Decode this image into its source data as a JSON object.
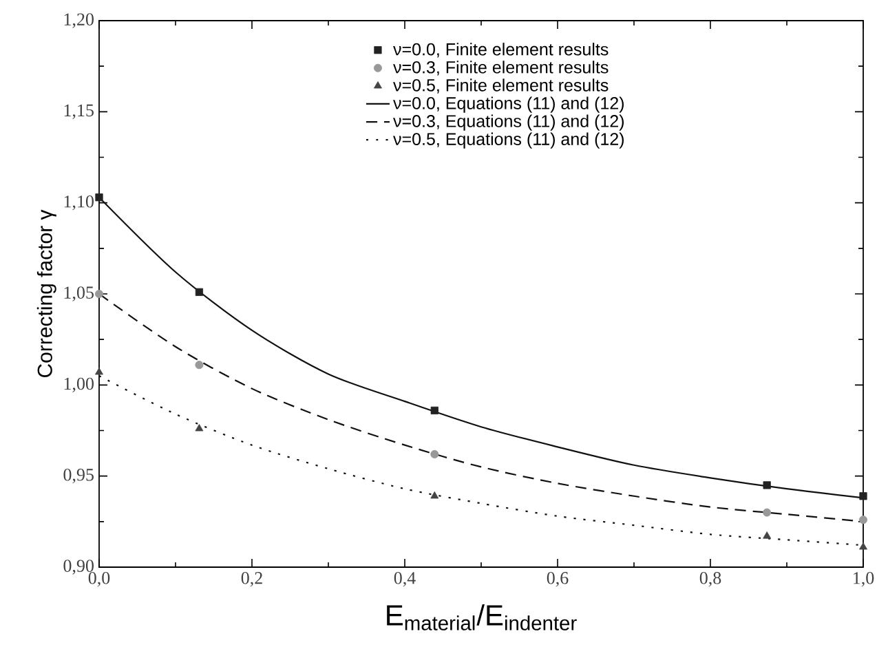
{
  "chart_data": {
    "type": "line",
    "xlabel": "E$_{material}$/E$_{indenter}$",
    "ylabel": "Correcting factor γ",
    "xlim": [
      0,
      1
    ],
    "ylim": [
      0.9,
      1.2
    ],
    "xticks": [
      {
        "value": 0,
        "label": "0,0"
      },
      {
        "value": 0.2,
        "label": "0,2"
      },
      {
        "value": 0.4,
        "label": "0,4"
      },
      {
        "value": 0.6,
        "label": "0,6"
      },
      {
        "value": 0.8,
        "label": "0,8"
      },
      {
        "value": 1.0,
        "label": "1,0"
      }
    ],
    "yticks": [
      {
        "value": 0.9,
        "label": "0,90"
      },
      {
        "value": 0.95,
        "label": "0,95"
      },
      {
        "value": 1.0,
        "label": "1,00"
      },
      {
        "value": 1.05,
        "label": "1,05"
      },
      {
        "value": 1.1,
        "label": "1,10"
      },
      {
        "value": 1.15,
        "label": "1,15"
      },
      {
        "value": 1.2,
        "label": "1,20"
      }
    ],
    "grid": false,
    "legend": "top",
    "series": [
      {
        "name": "ν=0.0, Finite element results",
        "type": "scatter",
        "marker": "square",
        "color": "#222222",
        "x": [
          0,
          0.131,
          0.439,
          0.874,
          1.0
        ],
        "values": [
          1.103,
          1.051,
          0.986,
          0.945,
          0.939
        ]
      },
      {
        "name": "ν=0.3, Finite element results",
        "type": "scatter",
        "marker": "circle",
        "color": "#999999",
        "x": [
          0,
          0.131,
          0.439,
          0.874,
          1.0
        ],
        "values": [
          1.05,
          1.011,
          0.962,
          0.93,
          0.926
        ]
      },
      {
        "name": "ν=0.5, Finite element results",
        "type": "scatter",
        "marker": "triangle",
        "color": "#444444",
        "x": [
          0,
          0.131,
          0.439,
          0.874,
          1.0
        ],
        "values": [
          1.007,
          0.976,
          0.939,
          0.917,
          0.911
        ]
      },
      {
        "name": "ν=0.0, Equations (11) and (12)",
        "line_style": "solid",
        "color": "#111111",
        "x": [
          0,
          0.1,
          0.2,
          0.3,
          0.4,
          0.5,
          0.6,
          0.7,
          0.8,
          0.9,
          1.0
        ],
        "values": [
          1.103,
          1.062,
          1.03,
          1.006,
          0.991,
          0.977,
          0.966,
          0.956,
          0.949,
          0.943,
          0.938
        ]
      },
      {
        "name": "ν=0.3, Equations (11) and (12)",
        "line_style": "dashed",
        "color": "#111111",
        "x": [
          0,
          0.1,
          0.2,
          0.3,
          0.4,
          0.5,
          0.6,
          0.7,
          0.8,
          0.9,
          1.0
        ],
        "values": [
          1.05,
          1.021,
          0.998,
          0.981,
          0.967,
          0.955,
          0.946,
          0.939,
          0.933,
          0.929,
          0.925
        ]
      },
      {
        "name": "ν=0.5, Equations (11) and (12)",
        "line_style": "dotted",
        "color": "#111111",
        "x": [
          0,
          0.1,
          0.2,
          0.3,
          0.4,
          0.5,
          0.6,
          0.7,
          0.8,
          0.9,
          1.0
        ],
        "values": [
          1.005,
          0.984,
          0.967,
          0.954,
          0.943,
          0.935,
          0.928,
          0.923,
          0.918,
          0.915,
          0.912
        ]
      }
    ]
  }
}
